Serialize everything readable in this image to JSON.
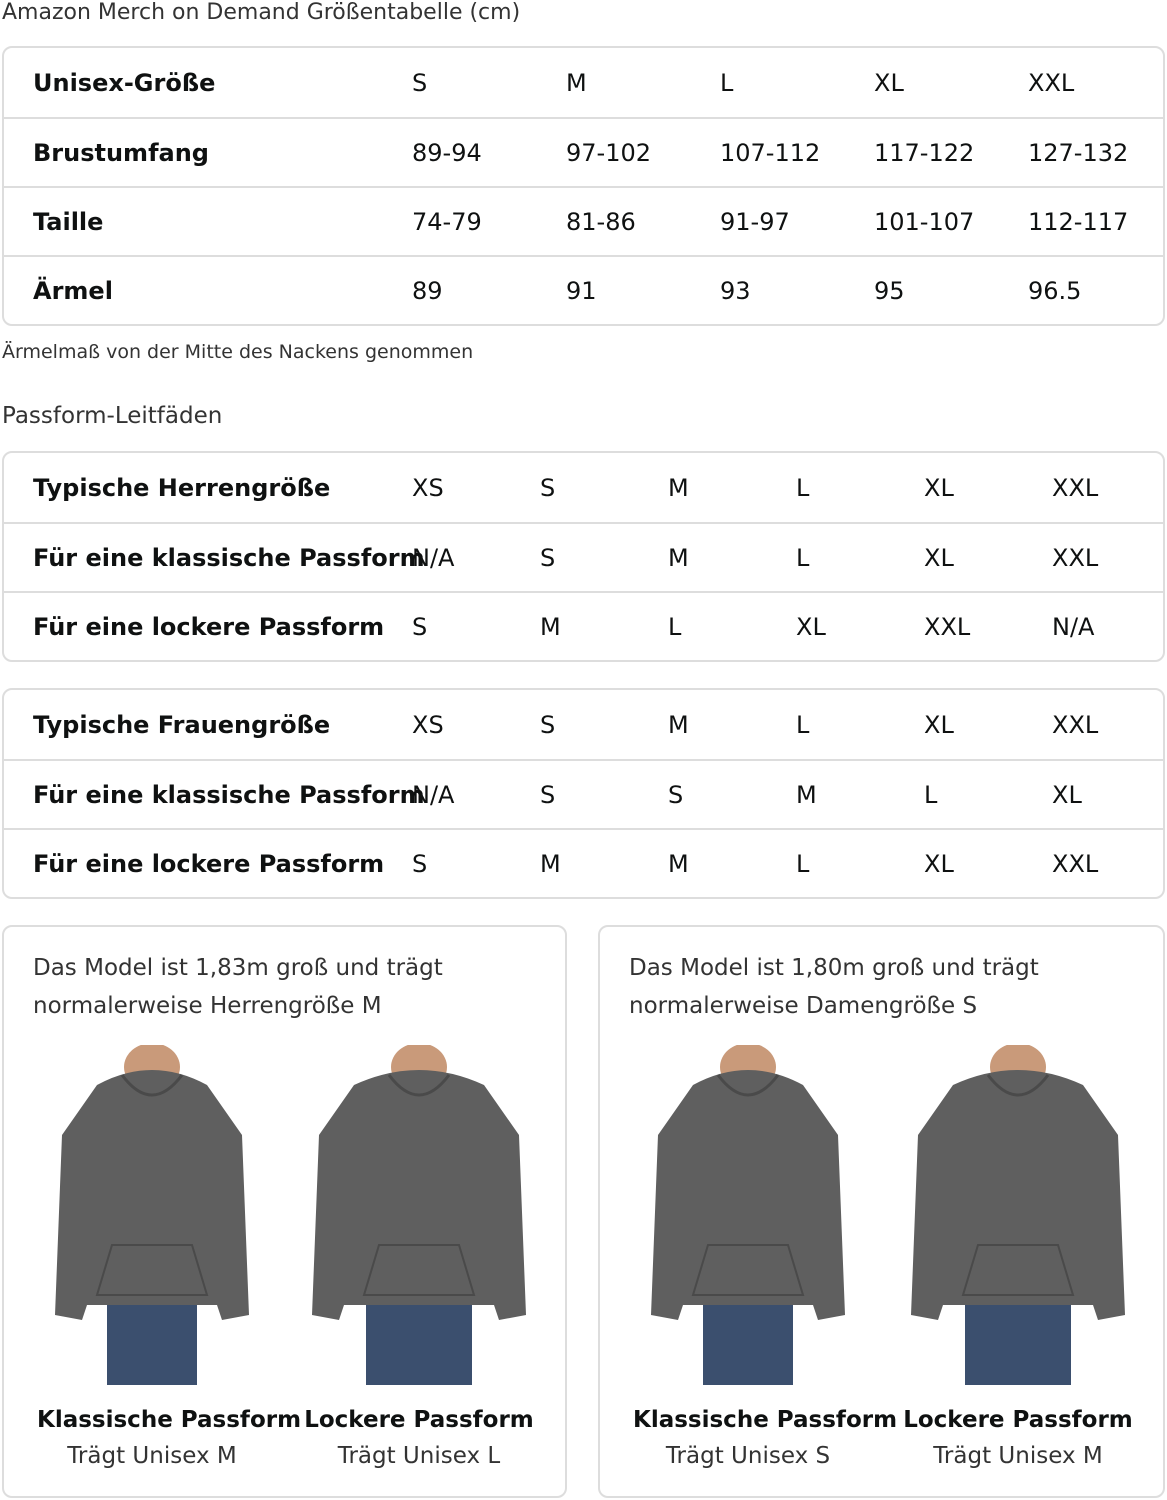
{
  "title": "Amazon Merch on Demand Größentabelle (cm)",
  "unisex_table": {
    "rows": [
      {
        "label": "Unisex-Größe",
        "values": [
          "S",
          "M",
          "L",
          "XL",
          "XXL"
        ]
      },
      {
        "label": "Brustumfang",
        "values": [
          "89-94",
          "97-102",
          "107-112",
          "117-122",
          "127-132"
        ]
      },
      {
        "label": "Taille",
        "values": [
          "74-79",
          "81-86",
          "91-97",
          "101-107",
          "112-117"
        ]
      },
      {
        "label": "Ärmel",
        "values": [
          "89",
          "91",
          "93",
          "95",
          "96.5"
        ]
      }
    ]
  },
  "sleeve_note": "Ärmelmaß von der Mitte des Nackens genommen",
  "fit_guide_title": "Passform-Leitfäden",
  "men_table": {
    "rows": [
      {
        "label": "Typische Herrengröße",
        "values": [
          "XS",
          "S",
          "M",
          "L",
          "XL",
          "XXL"
        ]
      },
      {
        "label": "Für eine klassische Passform",
        "values": [
          "N/A",
          "S",
          "M",
          "L",
          "XL",
          "XXL"
        ]
      },
      {
        "label": "Für eine lockere Passform",
        "values": [
          "S",
          "M",
          "L",
          "XL",
          "XXL",
          "N/A"
        ]
      }
    ]
  },
  "women_table": {
    "rows": [
      {
        "label": "Typische Frauengröße",
        "values": [
          "XS",
          "S",
          "M",
          "L",
          "XL",
          "XXL"
        ]
      },
      {
        "label": "Für eine klassische Passform",
        "values": [
          "N/A",
          "S",
          "S",
          "M",
          "L",
          "XL"
        ]
      },
      {
        "label": "Für eine lockere Passform",
        "values": [
          "S",
          "M",
          "M",
          "L",
          "XL",
          "XXL"
        ]
      }
    ]
  },
  "cards": [
    {
      "desc": "Das Model ist 1,83m groß und trägt normalerweise Herrengröße M",
      "figures": [
        {
          "name": "Klassische Passform",
          "size": "Trägt Unisex M"
        },
        {
          "name": "Lockere Passform",
          "size": "Trägt Unisex L"
        }
      ]
    },
    {
      "desc": "Das Model ist 1,80m groß und trägt normalerweise Damengröße S",
      "figures": [
        {
          "name": "Klassische Passform",
          "size": "Trägt Unisex S"
        },
        {
          "name": "Lockere Passform",
          "size": "Trägt Unisex M"
        }
      ]
    }
  ],
  "colors": {
    "hoodie": "#5f5f5f",
    "jeans": "#3b4f6e",
    "border": "#dddddd"
  }
}
